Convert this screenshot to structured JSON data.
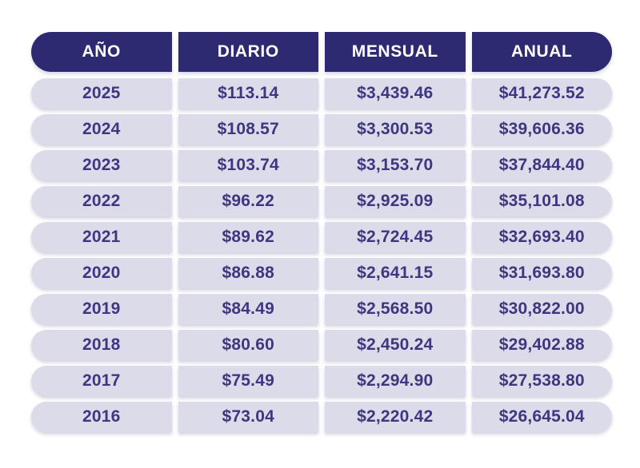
{
  "colors": {
    "header_bg": "#2e2a72",
    "header_text": "#ffffff",
    "row_bg": "#dcdbe9",
    "row_text": "#3d3781",
    "page_bg": "#ffffff"
  },
  "chart_data": {
    "type": "table",
    "title": "",
    "columns": [
      "AÑO",
      "DIARIO",
      "MENSUAL",
      "ANUAL"
    ],
    "rows": [
      [
        "2025",
        "$113.14",
        "$3,439.46",
        "$41,273.52"
      ],
      [
        "2024",
        "$108.57",
        "$3,300.53",
        "$39,606.36"
      ],
      [
        "2023",
        "$103.74",
        "$3,153.70",
        "$37,844.40"
      ],
      [
        "2022",
        "$96.22",
        "$2,925.09",
        "$35,101.08"
      ],
      [
        "2021",
        "$89.62",
        "$2,724.45",
        "$32,693.40"
      ],
      [
        "2020",
        "$86.88",
        "$2,641.15",
        "$31,693.80"
      ],
      [
        "2019",
        "$84.49",
        "$2,568.50",
        "$30,822.00"
      ],
      [
        "2018",
        "$80.60",
        "$2,450.24",
        "$29,402.88"
      ],
      [
        "2017",
        "$75.49",
        "$2,294.90",
        "$27,538.80"
      ],
      [
        "2016",
        "$73.04",
        "$2,220.42",
        "$26,645.04"
      ]
    ],
    "numeric": {
      "years": [
        2025,
        2024,
        2023,
        2022,
        2021,
        2020,
        2019,
        2018,
        2017,
        2016
      ],
      "diario": [
        113.14,
        108.57,
        103.74,
        96.22,
        89.62,
        86.88,
        84.49,
        80.6,
        75.49,
        73.04
      ],
      "mensual": [
        3439.46,
        3300.53,
        3153.7,
        2925.09,
        2724.45,
        2641.15,
        2568.5,
        2450.24,
        2294.9,
        2220.42
      ],
      "anual": [
        41273.52,
        39606.36,
        37844.4,
        35101.08,
        32693.4,
        31693.8,
        30822.0,
        29402.88,
        27538.8,
        26645.04
      ]
    }
  }
}
